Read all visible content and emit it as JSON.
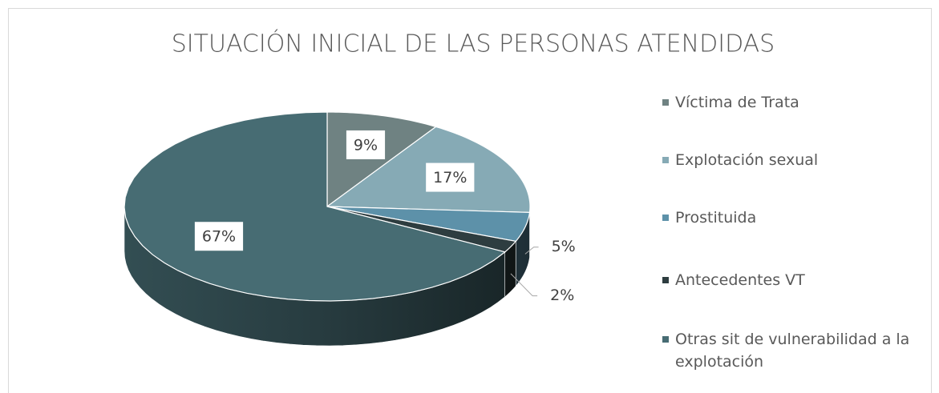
{
  "chart_data": {
    "type": "pie",
    "title": "SITUACIÓN INICIAL DE LAS PERSONAS ATENDIDAS",
    "categories": [
      "Víctima de Trata",
      "Explotación sexual",
      "Prostituida",
      "Antecedentes VT",
      "Otras sit de vulnerabilidad a la explotación"
    ],
    "values": [
      9,
      17,
      5,
      2,
      67
    ],
    "value_labels": [
      "9%",
      "17%",
      "5%",
      "2%",
      "67%"
    ],
    "colors": [
      "#6f8282",
      "#86aab5",
      "#5d91a9",
      "#2e3d40",
      "#476c73"
    ]
  }
}
